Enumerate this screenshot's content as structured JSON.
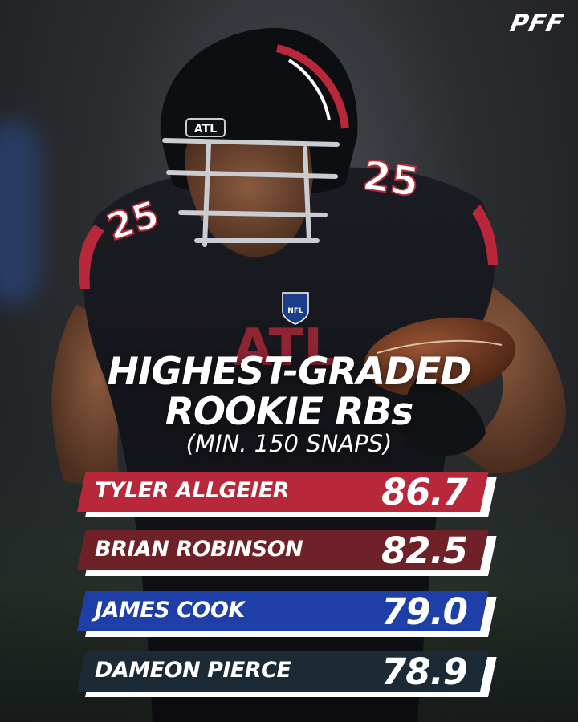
{
  "brand": {
    "logo_text": "PFF"
  },
  "headline": {
    "line1": "HIGHEST-GRADED",
    "line2": "ROOKIE RBs",
    "line3": "(MIN. 150 SNAPS)"
  },
  "photo": {
    "helmet_text": "ATL",
    "jersey_number": "25",
    "jersey_chest_text": "ATL",
    "shield_text": "NFL"
  },
  "rankings": [
    {
      "name": "TYLER ALLGEIER",
      "grade": "86.7",
      "color": "#b8283a"
    },
    {
      "name": "BRIAN ROBINSON",
      "grade": "82.5",
      "color": "#6e2228"
    },
    {
      "name": "JAMES COOK",
      "grade": "79.0",
      "color": "#1f3fa8"
    },
    {
      "name": "DAMEON PIERCE",
      "grade": "78.9",
      "color": "#1c2a36"
    }
  ],
  "colors": {
    "accent_red": "#b8283a",
    "shadow": "#ffffff",
    "helmet": "#0d0e11",
    "football": "#6a3620"
  }
}
